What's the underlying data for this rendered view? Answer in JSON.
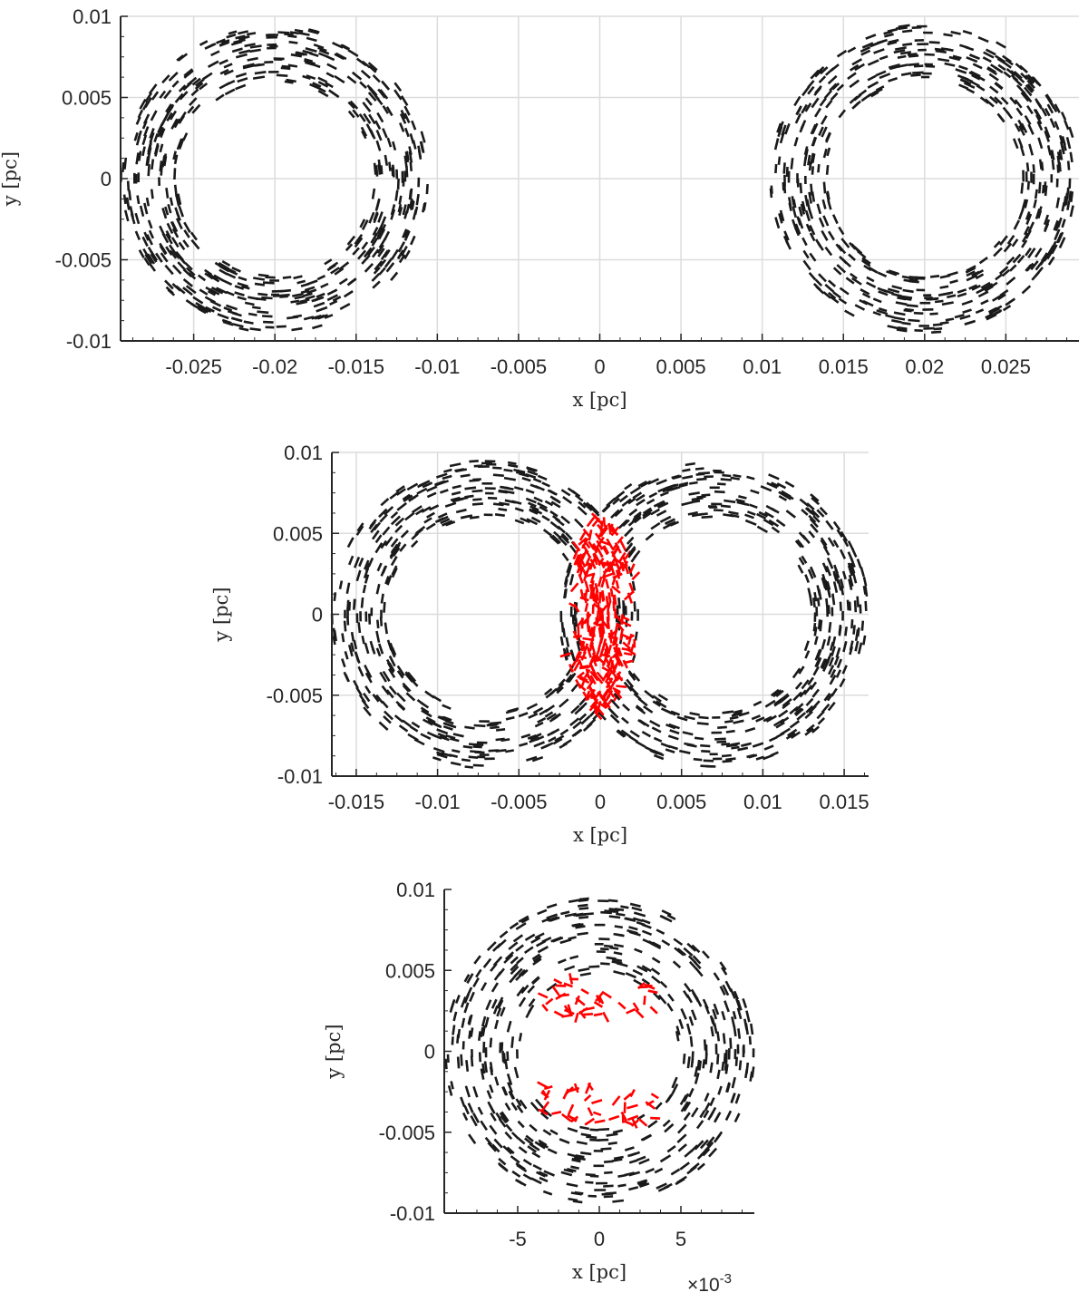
{
  "chart_data": [
    {
      "type": "scatter",
      "panel": "top",
      "xlabel": "x [pc]",
      "ylabel": "y [pc]",
      "xlim": [
        -0.0295,
        0.0295
      ],
      "ylim": [
        -0.01,
        0.01
      ],
      "xticks": [
        -0.025,
        -0.02,
        -0.015,
        -0.01,
        -0.005,
        0,
        0.005,
        0.01,
        0.015,
        0.02,
        0.025
      ],
      "xtick_labels": [
        "-0.025",
        "-0.02",
        "-0.015",
        "-0.01",
        "-0.005",
        "0",
        "0.005",
        "0.01",
        "0.015",
        "0.02",
        "0.025"
      ],
      "yticks": [
        -0.01,
        -0.005,
        0,
        0.005,
        0.01
      ],
      "ytick_labels": [
        "-0.01",
        "-0.005",
        "0",
        "0.005",
        "0.01"
      ],
      "exponent_label": "",
      "grid": true,
      "series": [
        {
          "role": "ring",
          "color": "#1a1a1a",
          "center": [
            -0.02,
            0
          ],
          "r_inner": 0.006,
          "r_outer": 0.0095,
          "marker": "short dash segments along circular orbits"
        },
        {
          "role": "ring",
          "color": "#1a1a1a",
          "center": [
            0.02,
            0
          ],
          "r_inner": 0.006,
          "r_outer": 0.0095,
          "marker": "short dash segments along circular orbits"
        }
      ]
    },
    {
      "type": "scatter",
      "panel": "middle",
      "xlabel": "x [pc]",
      "ylabel": "y [pc]",
      "xlim": [
        -0.0165,
        0.0165
      ],
      "ylim": [
        -0.01,
        0.01
      ],
      "xticks": [
        -0.015,
        -0.01,
        -0.005,
        0,
        0.005,
        0.01,
        0.015
      ],
      "xtick_labels": [
        "-0.015",
        "-0.01",
        "-0.005",
        "0",
        "0.005",
        "0.01",
        "0.015"
      ],
      "yticks": [
        -0.01,
        -0.005,
        0,
        0.005,
        0.01
      ],
      "ytick_labels": [
        "-0.01",
        "-0.005",
        "0",
        "0.005",
        "0.01"
      ],
      "exponent_label": "",
      "grid": true,
      "series": [
        {
          "role": "ring",
          "color": "#1a1a1a",
          "center": [
            -0.007,
            0
          ],
          "r_inner": 0.006,
          "r_outer": 0.0095,
          "marker": "short dash segments along circular orbits"
        },
        {
          "role": "ring",
          "color": "#1a1a1a",
          "center": [
            0.007,
            0
          ],
          "r_inner": 0.006,
          "r_outer": 0.0095,
          "marker": "short dash segments along circular orbits"
        },
        {
          "role": "overlap",
          "color": "#ff0000",
          "region": "intersection of the two rings",
          "x_range": [
            -0.0025,
            0.0025
          ],
          "y_range": [
            -0.006,
            0.006
          ],
          "marker": "short dash segments"
        }
      ]
    },
    {
      "type": "scatter",
      "panel": "bottom",
      "xlabel": "x [pc]",
      "ylabel": "y [pc]",
      "xlim": [
        -0.0095,
        0.0095
      ],
      "ylim": [
        -0.01,
        0.01
      ],
      "xticks": [
        -0.005,
        0,
        0.005
      ],
      "xtick_labels": [
        "-5",
        "0",
        "5"
      ],
      "yticks": [
        -0.01,
        -0.005,
        0,
        0.005,
        0.01
      ],
      "ytick_labels": [
        "-0.01",
        "-0.005",
        "0",
        "0.005",
        "0.01"
      ],
      "exponent_label": "×10",
      "exponent_power": "-3",
      "grid": false,
      "series": [
        {
          "role": "ring",
          "color": "#1a1a1a",
          "center": [
            0,
            0
          ],
          "r_inner": 0.0048,
          "r_outer": 0.0095,
          "marker": "short dash segments along circular orbits"
        },
        {
          "role": "inner",
          "color": "#ff0000",
          "region": "upper and lower clumps inside the central hole",
          "y_bands": [
            [
              0.002,
              0.0045
            ],
            [
              -0.0045,
              -0.002
            ]
          ],
          "x_range": [
            -0.0035,
            0.0035
          ],
          "marker": "short dash segments"
        }
      ]
    }
  ]
}
